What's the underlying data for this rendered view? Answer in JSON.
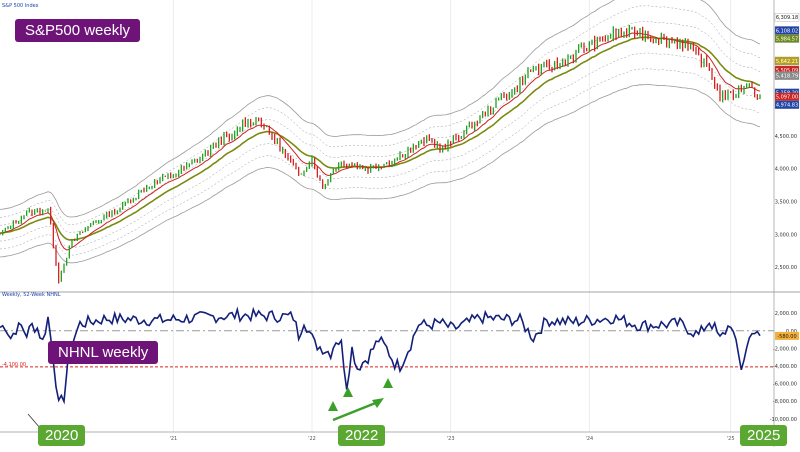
{
  "chart_data": [
    {
      "type": "bar",
      "title": "S&P 500 Index",
      "tag": "S&P500 weekly",
      "start_date": "2019-10-04",
      "weekly_ohlc_anchor_weeks": [
        0,
        10,
        18,
        22,
        24,
        27,
        34,
        45,
        56,
        67,
        73,
        79,
        84,
        87,
        91,
        97,
        102,
        107,
        112,
        117,
        121,
        125,
        129,
        138,
        146,
        160,
        166,
        181,
        188,
        193,
        199,
        210,
        219,
        225,
        230,
        238,
        245,
        257,
        262,
        266,
        270,
        276,
        280,
        285
      ],
      "weekly_close_anchor_values": [
        3000,
        3330,
        3380,
        2300,
        2550,
        2900,
        3150,
        3400,
        3750,
        3950,
        4100,
        4300,
        4500,
        4450,
        4700,
        4750,
        4500,
        4200,
        3900,
        4150,
        3700,
        4000,
        4100,
        4000,
        4100,
        4450,
        4300,
        4800,
        5100,
        5200,
        5500,
        5600,
        5850,
        5950,
        6050,
        6090,
        6000,
        5900,
        5700,
        5500,
        5100,
        5150,
        5300,
        5100
      ],
      "ma_fast_color": "#cc2222",
      "ma_slow_color": "#7a8a10",
      "envelope_color": "#9a9a9a",
      "up_bar_color": "#20a020",
      "down_bar_color": "#d42020",
      "y_ticks": [
        "2,500.00",
        "3,000.00",
        "3,500.00",
        "4,000.00",
        "4,500.00"
      ],
      "ylim": [
        2150,
        6450
      ],
      "price_badges": [
        {
          "label": "6,309.18",
          "color": "#ffffff",
          "text_color": "#1a1a1a"
        },
        {
          "label": "6,108.02",
          "color": "#2244aa",
          "text_color": "#ffffff"
        },
        {
          "label": "5,984.57",
          "color": "#6e8a1e",
          "text_color": "#ffffff"
        },
        {
          "label": "5,642.21",
          "color": "#b5a01a",
          "text_color": "#ffffff"
        },
        {
          "label": "5,505.09",
          "color": "#cc2222",
          "text_color": "#ffffff"
        },
        {
          "label": "5,418.79",
          "color": "#8a8a8a",
          "text_color": "#ffffff"
        },
        {
          "label": "5,158.20",
          "color": "#2244aa",
          "text_color": "#ffffff"
        },
        {
          "label": "5,097.00",
          "color": "#cc2222",
          "text_color": "#ffffff"
        },
        {
          "label": "4,974.83",
          "color": "#2244aa",
          "text_color": "#ffffff"
        }
      ]
    },
    {
      "type": "line",
      "title": "Weekly, 52-Week NHNL",
      "tag": "NHNL weekly",
      "anchor_weeks": [
        0,
        2,
        4,
        6,
        8,
        10,
        12,
        14,
        16,
        18,
        20,
        22,
        24,
        26,
        30,
        40,
        60,
        90,
        110,
        112,
        114,
        118,
        124,
        126,
        128,
        130,
        132,
        134,
        138,
        142,
        145,
        148,
        150,
        152,
        154,
        157,
        160,
        165,
        170,
        180,
        195,
        200,
        205,
        215,
        230,
        240,
        255,
        262,
        266,
        268,
        270,
        274,
        278,
        282,
        285
      ],
      "anchor_values": [
        400,
        600,
        -800,
        200,
        500,
        -400,
        600,
        300,
        -1200,
        1500,
        -3000,
        -8500,
        -7500,
        -2000,
        800,
        1400,
        1200,
        1800,
        1600,
        -500,
        1200,
        -1500,
        -2500,
        -1000,
        -1500,
        -6200,
        -2000,
        -4200,
        -3000,
        -1000,
        -2000,
        -3700,
        -4000,
        -2800,
        -1500,
        800,
        600,
        900,
        200,
        1500,
        1200,
        -800,
        1200,
        1000,
        1500,
        600,
        800,
        -500,
        1100,
        300,
        -1000,
        900,
        -4200,
        200,
        -900
      ],
      "ylim": [
        -11500,
        3500
      ],
      "y_ticks": [
        "2,000.00",
        "0.00",
        "-2,000.00",
        "-4,000.00",
        "-6,000.00",
        "-8,000.00",
        "-10,000.00"
      ],
      "zero_label": "0.00",
      "current_label": "-580.00",
      "threshold_value": -4100,
      "threshold_label": "-4,100.00",
      "line_color": "#12207a",
      "threshold_color": "#dd2222",
      "zero_line_color": "#999999",
      "x_tick_labels": [
        "'21",
        "'22",
        "'23",
        "'24",
        "'25"
      ],
      "x_tick_weeks": [
        65,
        117,
        169,
        221,
        274
      ],
      "annotations": [
        "2020",
        "2022",
        "2025"
      ],
      "arrow_color": "#3aa02a"
    }
  ]
}
